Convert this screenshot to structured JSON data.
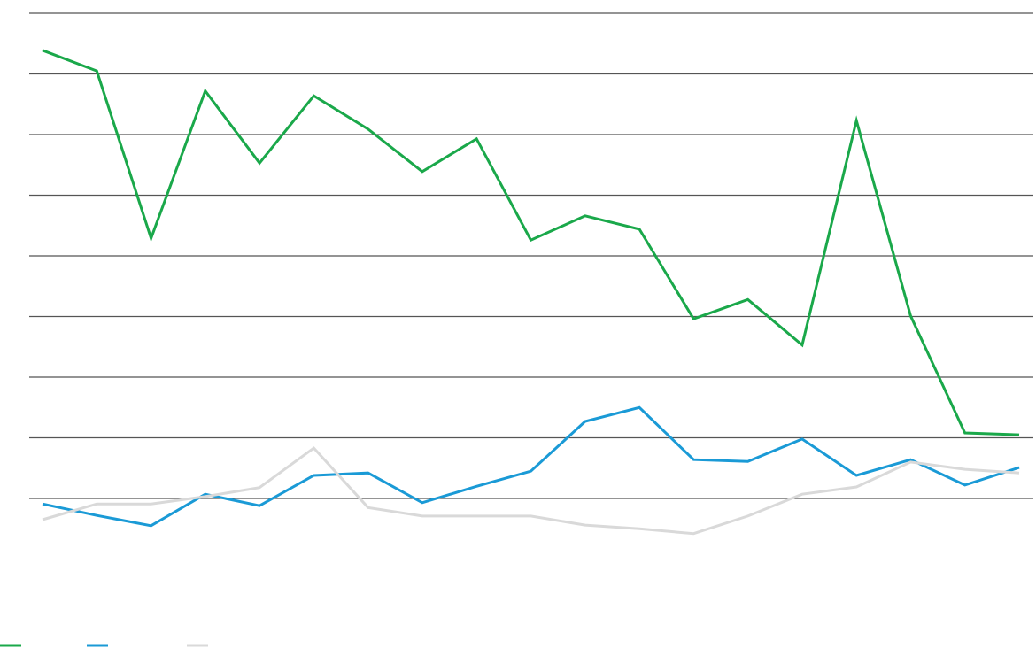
{
  "chart_data": {
    "type": "line",
    "categories": [
      null,
      null,
      null,
      null,
      null,
      null,
      null,
      null,
      null,
      null,
      null,
      null,
      null,
      null,
      null,
      null,
      null,
      null,
      null
    ],
    "series": [
      {
        "color": "#1aa84a",
        "values": [
          7.39,
          7.05,
          4.29,
          6.72,
          5.53,
          6.64,
          6.09,
          5.39,
          5.93,
          4.26,
          4.66,
          4.44,
          2.96,
          3.28,
          2.53,
          6.23,
          3.01,
          1.08,
          1.05
        ]
      },
      {
        "color": "#1a9ad6",
        "values": [
          -0.09,
          -0.28,
          -0.45,
          0.07,
          -0.12,
          0.38,
          0.42,
          -0.07,
          0.2,
          0.45,
          1.27,
          1.5,
          0.64,
          0.61,
          0.98,
          0.38,
          0.64,
          0.22,
          0.51
        ]
      },
      {
        "color": "#d9d9d9",
        "values": [
          -0.35,
          -0.09,
          -0.09,
          0.03,
          0.18,
          0.83,
          -0.15,
          -0.29,
          -0.29,
          -0.29,
          -0.44,
          -0.5,
          -0.58,
          -0.29,
          0.07,
          0.19,
          0.6,
          0.48,
          0.42
        ]
      }
    ],
    "ylim": [
      -1,
      8
    ],
    "yticks": [
      0,
      1,
      2,
      3,
      4,
      5,
      6,
      7,
      8
    ],
    "grid": true,
    "legend": "bottom-left"
  }
}
